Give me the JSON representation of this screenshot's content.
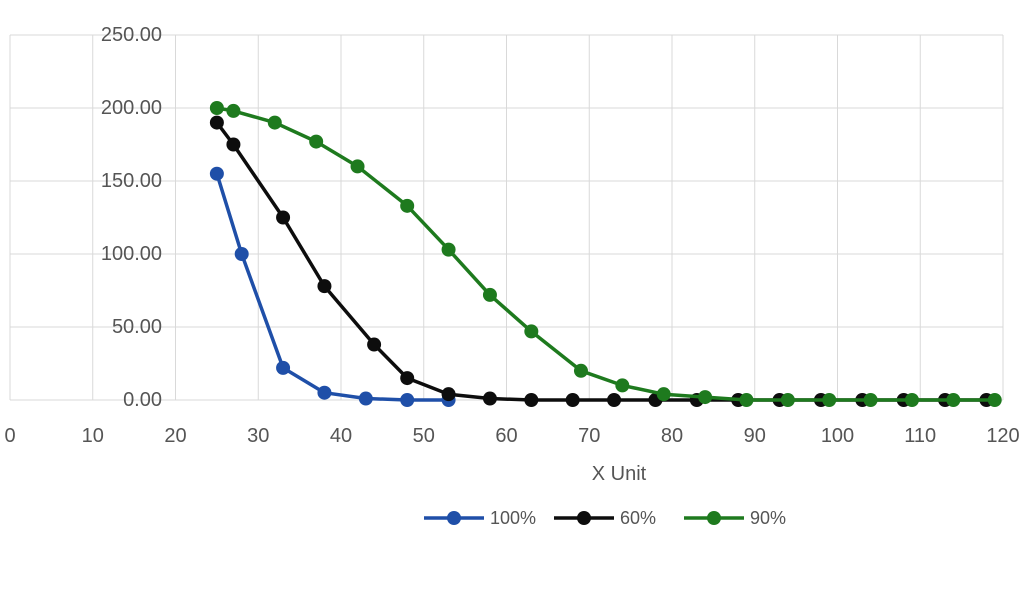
{
  "chart_data": {
    "type": "line",
    "xlabel": "X Unit",
    "ylabel": "",
    "ylim": [
      0,
      250
    ],
    "yticks": [
      0,
      50,
      100,
      150,
      200,
      250
    ],
    "ytick_labels": [
      "0.00",
      "50.00",
      "100.00",
      "150.00",
      "200.00",
      "250.00"
    ],
    "xlim": [
      0,
      120
    ],
    "xticks": [
      0,
      10,
      20,
      30,
      40,
      50,
      60,
      70,
      80,
      90,
      100,
      110,
      120
    ],
    "xtick_labels": [
      "0",
      "10",
      "20",
      "30",
      "40",
      "50",
      "60",
      "70",
      "80",
      "90",
      "100",
      "110",
      "120"
    ],
    "grid": true,
    "legend": "bottom",
    "series": [
      {
        "name": "100%",
        "color": "#1f4fa8",
        "x": [
          25,
          28,
          33,
          38,
          43,
          48,
          53
        ],
        "y": [
          155,
          100,
          22,
          5,
          1,
          0,
          0
        ]
      },
      {
        "name": "60%",
        "color": "#0d0d0d",
        "x": [
          25,
          27,
          33,
          38,
          44,
          48,
          53,
          58,
          63,
          68,
          73,
          78,
          83,
          88,
          93,
          98,
          103,
          108,
          113,
          118
        ],
        "y": [
          190,
          175,
          125,
          78,
          38,
          15,
          4,
          1,
          0,
          0,
          0,
          0,
          0,
          0,
          0,
          0,
          0,
          0,
          0,
          0
        ]
      },
      {
        "name": "90%",
        "color": "#1e7a1e",
        "x": [
          25,
          27,
          32,
          37,
          42,
          48,
          53,
          58,
          63,
          69,
          74,
          79,
          84,
          89,
          94,
          99,
          104,
          109,
          114,
          119
        ],
        "y": [
          200,
          198,
          190,
          177,
          160,
          133,
          103,
          72,
          47,
          20,
          10,
          4,
          2,
          0,
          0,
          0,
          0,
          0,
          0,
          0
        ]
      }
    ]
  }
}
